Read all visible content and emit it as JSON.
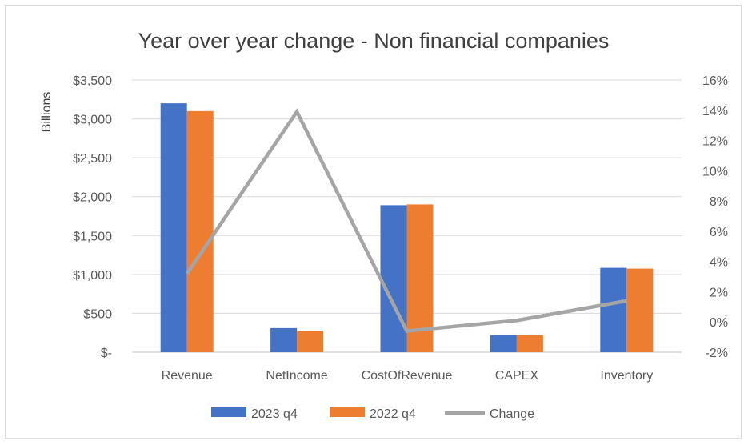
{
  "chart_data": {
    "type": "bar",
    "title": "Year over year change - Non financial companies",
    "ylabel": "Billions",
    "ylim": [
      0,
      3500
    ],
    "y_ticks": [
      "$3,500",
      "$3,000",
      "$2,500",
      "$2,000",
      "$1,500",
      "$1,000",
      "$500",
      "$-"
    ],
    "y2lim": [
      -2,
      16
    ],
    "y2_ticks": [
      "16%",
      "14%",
      "12%",
      "10%",
      "8%",
      "6%",
      "4%",
      "2%",
      "0%",
      "-2%"
    ],
    "categories": [
      "Revenue",
      "NetIncome",
      "CostOfRevenue",
      "CAPEX",
      "Inventory"
    ],
    "series": [
      {
        "name": "2023 q4",
        "type": "bar",
        "axis": "left",
        "color": "#4472C4",
        "values": [
          3200,
          310,
          1890,
          220,
          1085
        ]
      },
      {
        "name": "2022 q4",
        "type": "bar",
        "axis": "left",
        "color": "#ED7D31",
        "values": [
          3100,
          270,
          1900,
          220,
          1075
        ]
      },
      {
        "name": "Change",
        "type": "line",
        "axis": "right",
        "color": "#A5A5A5",
        "values": [
          3.2,
          13.9,
          -0.6,
          0.1,
          1.4
        ]
      }
    ],
    "grid": true,
    "legend": "bottom"
  }
}
